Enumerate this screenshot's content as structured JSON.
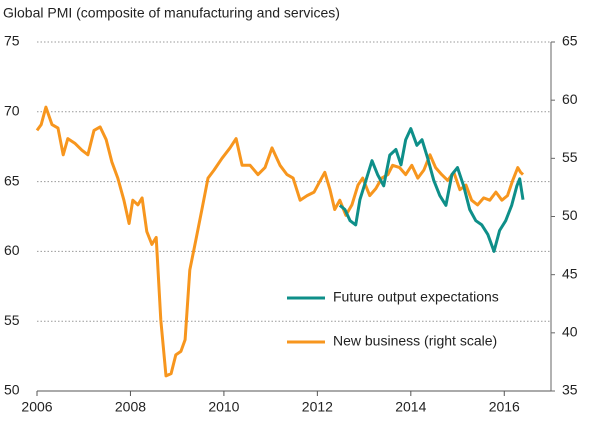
{
  "chart_data": {
    "type": "line",
    "title": "Global PMI (composite of manufacturing and services)",
    "xlim": [
      2006,
      2017
    ],
    "xticks": [
      2006,
      2008,
      2010,
      2012,
      2014,
      2016
    ],
    "ylim": [
      50,
      75
    ],
    "yticks": [
      50,
      55,
      60,
      65,
      70,
      75
    ],
    "y2lim": [
      35,
      65
    ],
    "y2ticks": [
      35,
      40,
      45,
      50,
      55,
      60,
      65
    ],
    "grid": true,
    "legend": "lower right",
    "series": [
      {
        "name": "Future output expectations",
        "color": "#0e8f89",
        "axis": "y",
        "x": [
          2012.48,
          2012.59,
          2012.7,
          2012.82,
          2012.91,
          2013.04,
          2013.17,
          2013.29,
          2013.42,
          2013.55,
          2013.68,
          2013.79,
          2013.89,
          2014.0,
          2014.13,
          2014.24,
          2014.36,
          2014.49,
          2014.62,
          2014.75,
          2014.88,
          2015.0,
          2015.13,
          2015.26,
          2015.39,
          2015.52,
          2015.65,
          2015.78,
          2015.9,
          2016.03,
          2016.16,
          2016.27,
          2016.33,
          2016.4
        ],
        "values": [
          63.3,
          63.0,
          62.2,
          61.9,
          63.7,
          65.1,
          66.5,
          65.5,
          64.7,
          66.9,
          67.3,
          66.2,
          68.0,
          68.8,
          67.6,
          68.0,
          66.7,
          65.1,
          64.0,
          63.3,
          65.5,
          66.0,
          64.7,
          63.0,
          62.2,
          61.9,
          61.2,
          60.0,
          61.5,
          62.2,
          63.3,
          64.7,
          65.2,
          63.7
        ]
      },
      {
        "name": "New business (right scale)",
        "color": "#f7961e",
        "axis": "y2",
        "x": [
          2006.0,
          2006.09,
          2006.19,
          2006.32,
          2006.45,
          2006.56,
          2006.66,
          2006.81,
          2006.96,
          2007.09,
          2007.22,
          2007.35,
          2007.48,
          2007.6,
          2007.73,
          2007.86,
          2007.97,
          2008.05,
          2008.16,
          2008.25,
          2008.35,
          2008.46,
          2008.55,
          2008.65,
          2008.76,
          2008.87,
          2008.97,
          2009.08,
          2009.17,
          2009.27,
          2009.4,
          2009.53,
          2009.66,
          2009.79,
          2009.96,
          2010.13,
          2010.26,
          2010.39,
          2010.56,
          2010.73,
          2010.88,
          2011.03,
          2011.2,
          2011.35,
          2011.48,
          2011.63,
          2011.78,
          2011.93,
          2012.05,
          2012.16,
          2012.27,
          2012.37,
          2012.48,
          2012.61,
          2012.74,
          2012.87,
          2012.97,
          2013.12,
          2013.25,
          2013.38,
          2013.51,
          2013.61,
          2013.76,
          2013.89,
          2014.02,
          2014.15,
          2014.28,
          2014.41,
          2014.53,
          2014.66,
          2014.79,
          2014.92,
          2015.05,
          2015.18,
          2015.3,
          2015.43,
          2015.56,
          2015.69,
          2015.82,
          2015.95,
          2016.07,
          2016.18,
          2016.29,
          2016.35,
          2016.4
        ],
        "values": [
          57.4,
          57.9,
          59.4,
          57.9,
          57.6,
          55.3,
          56.7,
          56.3,
          55.7,
          55.3,
          57.4,
          57.7,
          56.6,
          54.7,
          53.3,
          51.4,
          49.4,
          51.4,
          51.0,
          51.6,
          48.7,
          47.6,
          48.2,
          41.1,
          36.3,
          36.5,
          38.1,
          38.4,
          39.4,
          45.4,
          48.0,
          50.6,
          53.3,
          54.0,
          55.0,
          55.9,
          56.7,
          54.4,
          54.4,
          53.6,
          54.2,
          55.9,
          54.4,
          53.6,
          53.3,
          51.4,
          51.8,
          52.1,
          53.0,
          53.8,
          52.3,
          50.6,
          51.4,
          50.1,
          51.0,
          52.7,
          53.3,
          51.8,
          52.4,
          53.3,
          53.6,
          54.4,
          54.2,
          53.6,
          54.4,
          53.3,
          54.0,
          55.3,
          54.2,
          53.6,
          53.1,
          53.8,
          52.3,
          52.7,
          51.4,
          51.0,
          51.6,
          51.4,
          52.1,
          51.4,
          51.8,
          53.1,
          54.2,
          53.8,
          53.6
        ]
      }
    ]
  }
}
